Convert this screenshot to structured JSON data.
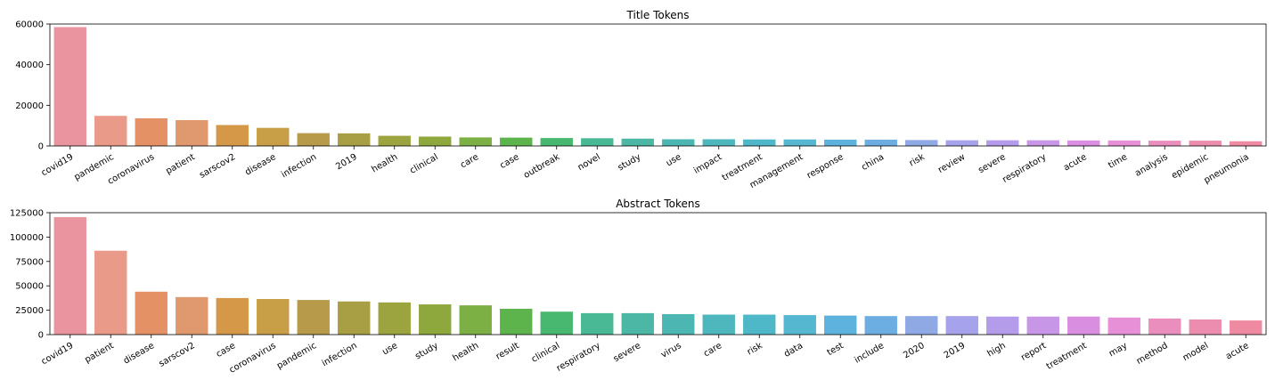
{
  "chart_data": [
    {
      "type": "bar",
      "title": "Title Tokens",
      "xlabel": "",
      "ylabel": "",
      "ylim": [
        0,
        60000
      ],
      "yticks": [
        0,
        20000,
        40000,
        60000
      ],
      "grid": false,
      "categories": [
        "covid19",
        "pandemic",
        "coronavirus",
        "patient",
        "sarscov2",
        "disease",
        "infection",
        "2019",
        "health",
        "clinical",
        "care",
        "case",
        "outbreak",
        "novel",
        "study",
        "use",
        "impact",
        "treatment",
        "management",
        "response",
        "china",
        "risk",
        "review",
        "severe",
        "respiratory",
        "acute",
        "time",
        "analysis",
        "epidemic",
        "pneumonia"
      ],
      "values": [
        58500,
        14800,
        13600,
        12700,
        10300,
        8900,
        6300,
        6200,
        5000,
        4600,
        4200,
        4100,
        3900,
        3800,
        3600,
        3300,
        3300,
        3200,
        3200,
        3100,
        3100,
        2900,
        2800,
        2800,
        2800,
        2700,
        2700,
        2600,
        2600,
        2300
      ]
    },
    {
      "type": "bar",
      "title": "Abstract Tokens",
      "xlabel": "",
      "ylabel": "",
      "ylim": [
        0,
        125000
      ],
      "yticks": [
        0,
        25000,
        50000,
        75000,
        100000,
        125000
      ],
      "grid": false,
      "categories": [
        "covid19",
        "patient",
        "disease",
        "sarscov2",
        "case",
        "coronavirus",
        "pandemic",
        "infection",
        "use",
        "study",
        "health",
        "result",
        "clinical",
        "respiratory",
        "severe",
        "virus",
        "care",
        "risk",
        "data",
        "test",
        "include",
        "2020",
        "2019",
        "high",
        "report",
        "treatment",
        "may",
        "method",
        "model",
        "acute"
      ],
      "values": [
        120500,
        86000,
        44000,
        38500,
        37500,
        36500,
        35500,
        34000,
        33000,
        31000,
        30000,
        26500,
        23500,
        22000,
        22000,
        21000,
        20500,
        20500,
        20000,
        19500,
        19000,
        19000,
        19000,
        18500,
        18500,
        18500,
        17500,
        16500,
        15500,
        14500
      ]
    }
  ],
  "colors": [
    "#e9949e",
    "#e99a88",
    "#e59166",
    "#e0996e",
    "#d49848",
    "#c89e46",
    "#b89b4a",
    "#a89e44",
    "#9ba43e",
    "#8fa83e",
    "#7caf44",
    "#5db44c",
    "#48b76f",
    "#49b894",
    "#4bb7a4",
    "#4cb6b2",
    "#4db7bd",
    "#4fb8c8",
    "#55b7d0",
    "#5db3dd",
    "#6daee2",
    "#8fa9e5",
    "#a6a2eb",
    "#b49ceb",
    "#c796e7",
    "#d98ee0",
    "#e790d8",
    "#ea8ebd",
    "#ec8cae",
    "#ee8aa2"
  ]
}
